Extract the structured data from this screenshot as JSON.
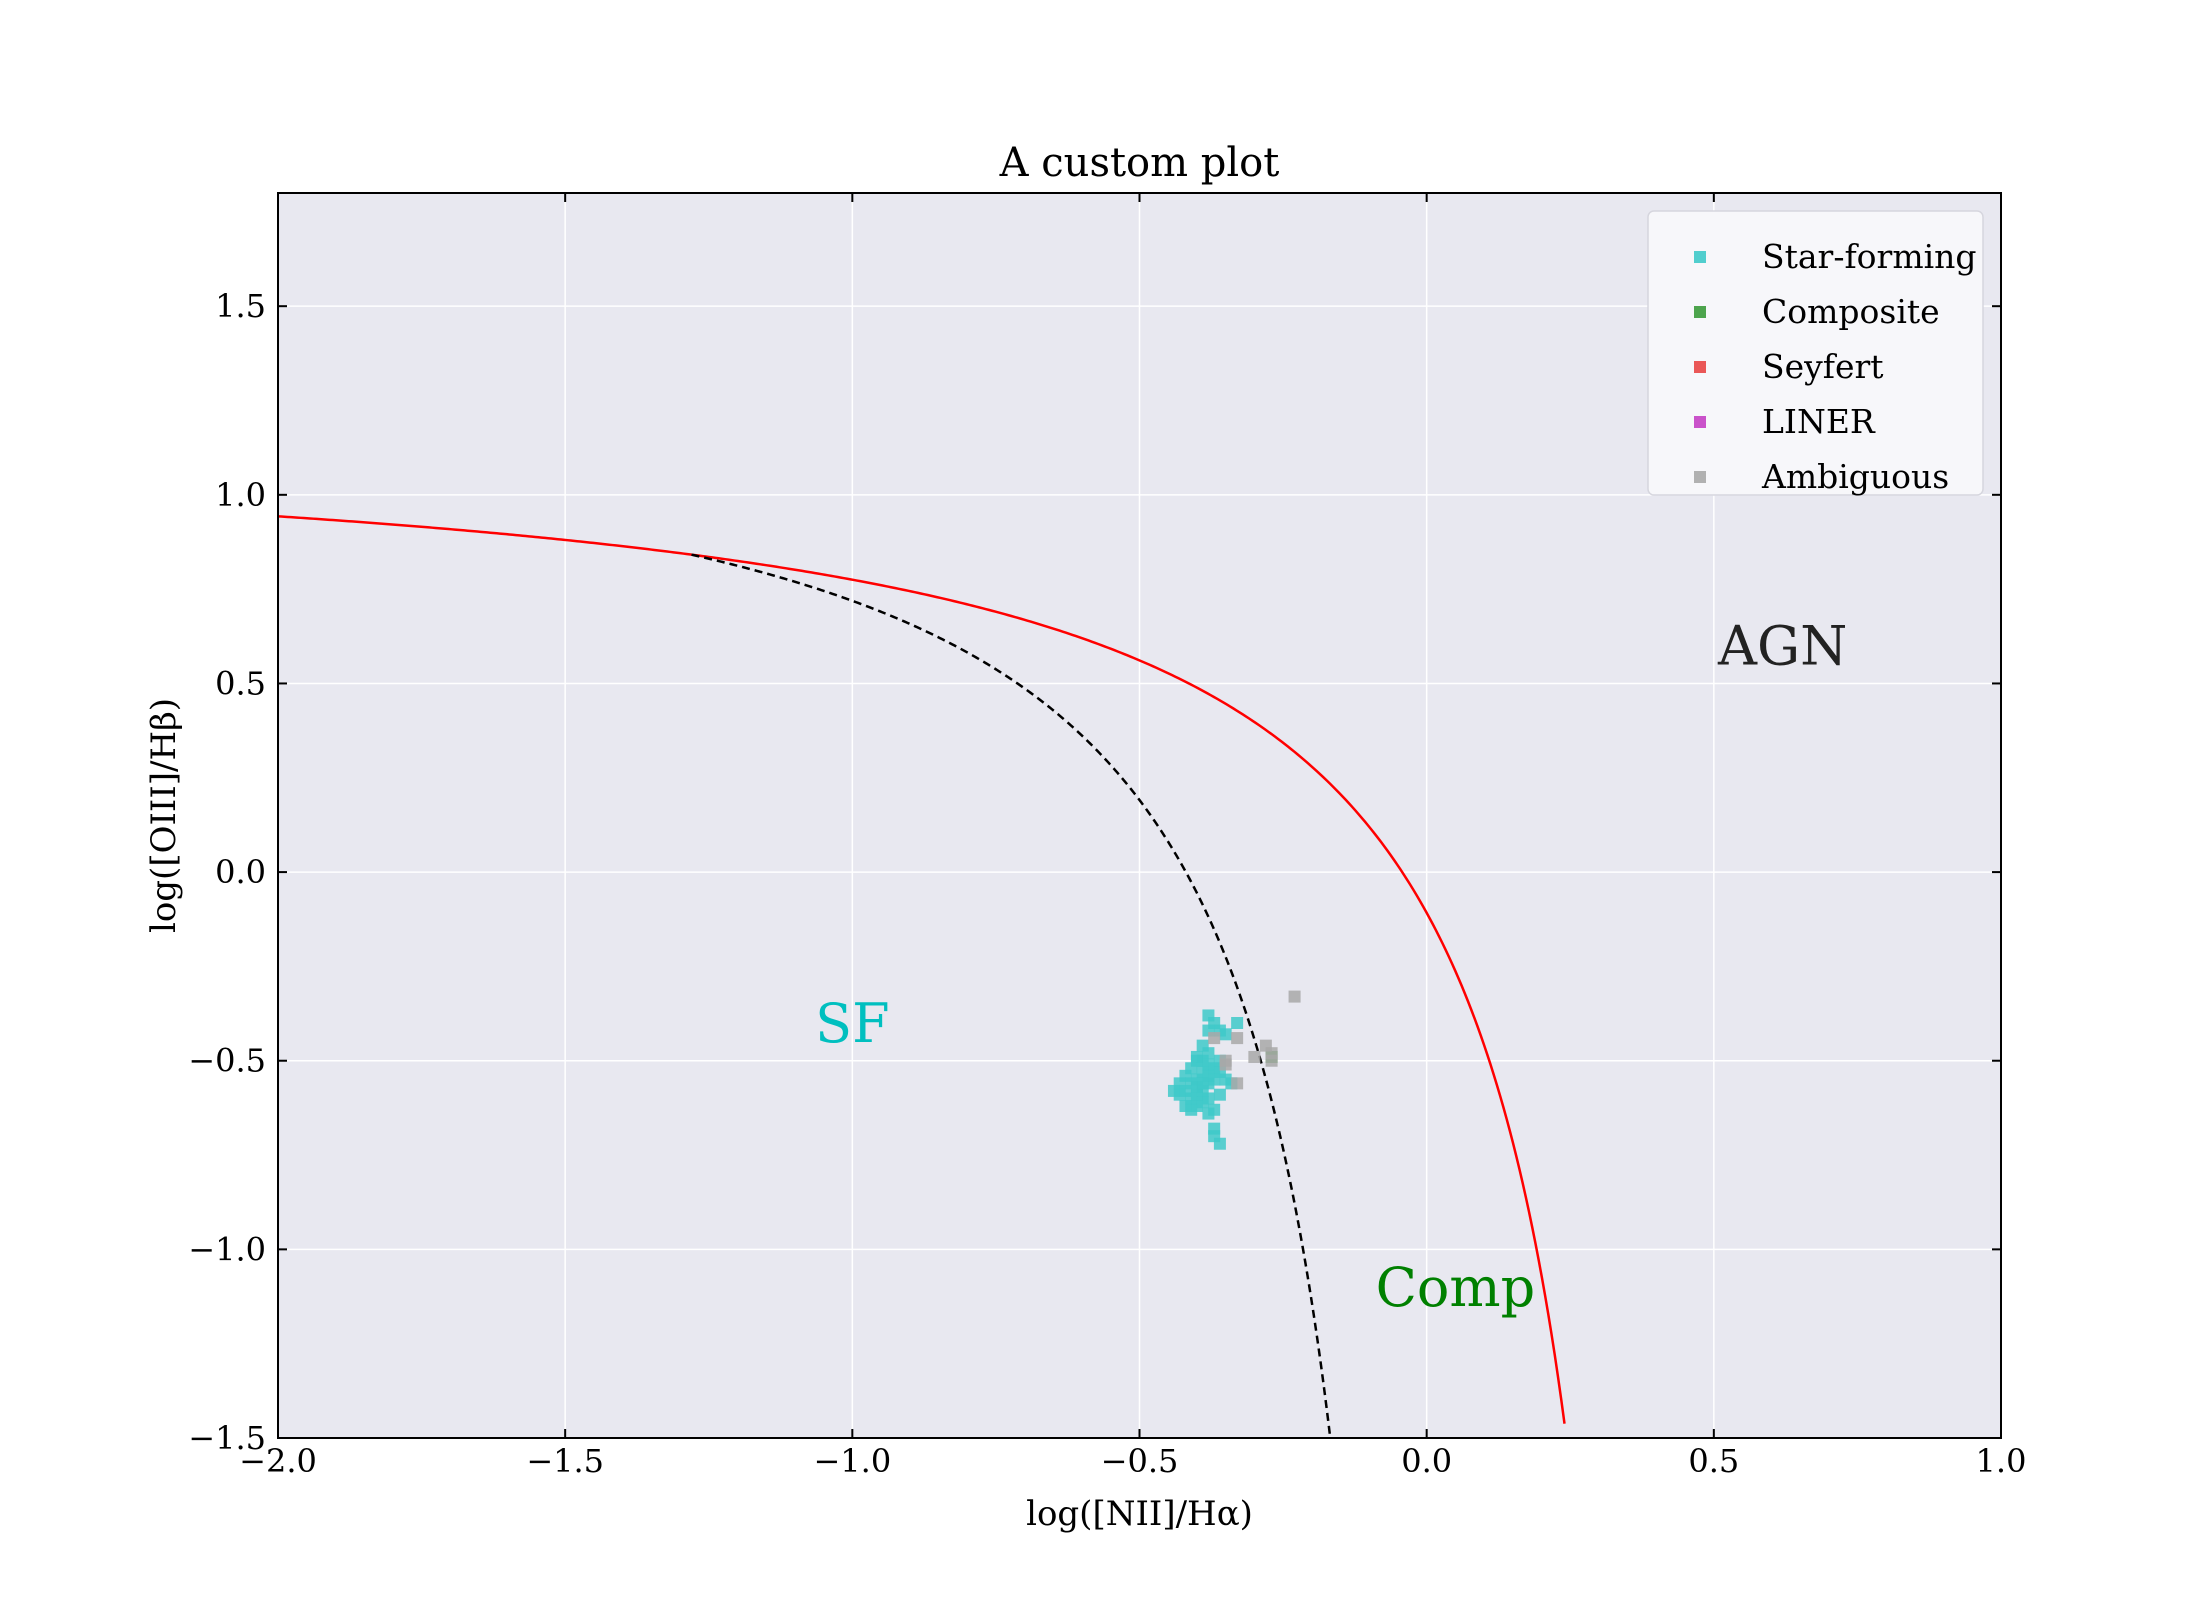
{
  "chart_data": {
    "type": "scatter",
    "title": "A custom plot",
    "xlabel": "log([NII]/Hα)",
    "ylabel": "log([OIII]/Hβ)",
    "xlim": [
      -2.0,
      1.0
    ],
    "ylim": [
      -1.5,
      1.8
    ],
    "x_ticks": [
      -2.0,
      -1.5,
      -1.0,
      -0.5,
      0.0,
      0.5,
      1.0
    ],
    "x_tick_labels": [
      "−2.0",
      "−1.5",
      "−1.0",
      "−0.5",
      "0.0",
      "0.5",
      "1.0"
    ],
    "y_ticks": [
      -1.5,
      -1.0,
      -0.5,
      0.0,
      0.5,
      1.0,
      1.5
    ],
    "y_tick_labels": [
      "−1.5",
      "−1.0",
      "−0.5",
      "0.0",
      "0.5",
      "1.0",
      "1.5"
    ],
    "grid": true,
    "legend_position": "top-right",
    "background_color": "#e8e8f0",
    "curves": [
      {
        "kind": "kewley",
        "formula": "0.61/(x-0.47)+1.19",
        "x_range": [
          -2.0,
          0.24
        ],
        "color": "#ff0000",
        "style": "solid"
      },
      {
        "kind": "kauffmann",
        "formula": "0.61/(x-0.05)+1.3",
        "x_range": [
          -1.28,
          -0.166
        ],
        "color": "#000000",
        "style": "dashed"
      }
    ],
    "region_labels": [
      {
        "text": "SF",
        "x": -1.0,
        "y": -0.45,
        "color": "#00bfbf"
      },
      {
        "text": "Comp",
        "x": 0.05,
        "y": -1.15,
        "color": "#008000"
      },
      {
        "text": "AGN",
        "x": 0.62,
        "y": 0.55,
        "color": "#222222"
      }
    ],
    "series": [
      {
        "name": "Star-forming",
        "color": "#3ec9c9",
        "points": [
          [
            -0.4,
            -0.49
          ],
          [
            -0.39,
            -0.5
          ],
          [
            -0.38,
            -0.48
          ],
          [
            -0.41,
            -0.52
          ],
          [
            -0.39,
            -0.53
          ],
          [
            -0.4,
            -0.55
          ],
          [
            -0.42,
            -0.54
          ],
          [
            -0.38,
            -0.56
          ],
          [
            -0.37,
            -0.52
          ],
          [
            -0.36,
            -0.53
          ],
          [
            -0.39,
            -0.58
          ],
          [
            -0.41,
            -0.6
          ],
          [
            -0.4,
            -0.62
          ],
          [
            -0.38,
            -0.6
          ],
          [
            -0.42,
            -0.58
          ],
          [
            -0.43,
            -0.56
          ],
          [
            -0.37,
            -0.55
          ],
          [
            -0.4,
            -0.57
          ],
          [
            -0.39,
            -0.61
          ],
          [
            -0.41,
            -0.63
          ],
          [
            -0.38,
            -0.64
          ],
          [
            -0.37,
            -0.63
          ],
          [
            -0.42,
            -0.62
          ],
          [
            -0.4,
            -0.59
          ],
          [
            -0.39,
            -0.56
          ],
          [
            -0.36,
            -0.59
          ],
          [
            -0.38,
            -0.51
          ],
          [
            -0.41,
            -0.56
          ],
          [
            -0.43,
            -0.59
          ],
          [
            -0.44,
            -0.58
          ],
          [
            -0.38,
            -0.38
          ],
          [
            -0.37,
            -0.4
          ],
          [
            -0.36,
            -0.42
          ],
          [
            -0.38,
            -0.42
          ],
          [
            -0.35,
            -0.43
          ],
          [
            -0.33,
            -0.4
          ],
          [
            -0.37,
            -0.68
          ],
          [
            -0.37,
            -0.7
          ],
          [
            -0.36,
            -0.72
          ],
          [
            -0.34,
            -0.56
          ],
          [
            -0.39,
            -0.46
          ],
          [
            -0.4,
            -0.5
          ],
          [
            -0.38,
            -0.54
          ],
          [
            -0.36,
            -0.5
          ],
          [
            -0.35,
            -0.55
          ]
        ]
      },
      {
        "name": "Composite",
        "color": "#3a9a3a",
        "points": [
          [
            -0.27,
            -0.49
          ]
        ]
      },
      {
        "name": "Seyfert",
        "color": "#e84545",
        "points": []
      },
      {
        "name": "LINER",
        "color": "#c43fc4",
        "points": []
      },
      {
        "name": "Ambiguous",
        "color": "#a8a8a8",
        "points": [
          [
            -0.23,
            -0.33
          ],
          [
            -0.33,
            -0.44
          ],
          [
            -0.37,
            -0.44
          ],
          [
            -0.35,
            -0.5
          ],
          [
            -0.28,
            -0.46
          ],
          [
            -0.27,
            -0.48
          ],
          [
            -0.27,
            -0.5
          ],
          [
            -0.33,
            -0.56
          ],
          [
            -0.35,
            -0.51
          ],
          [
            -0.3,
            -0.49
          ]
        ]
      }
    ]
  }
}
